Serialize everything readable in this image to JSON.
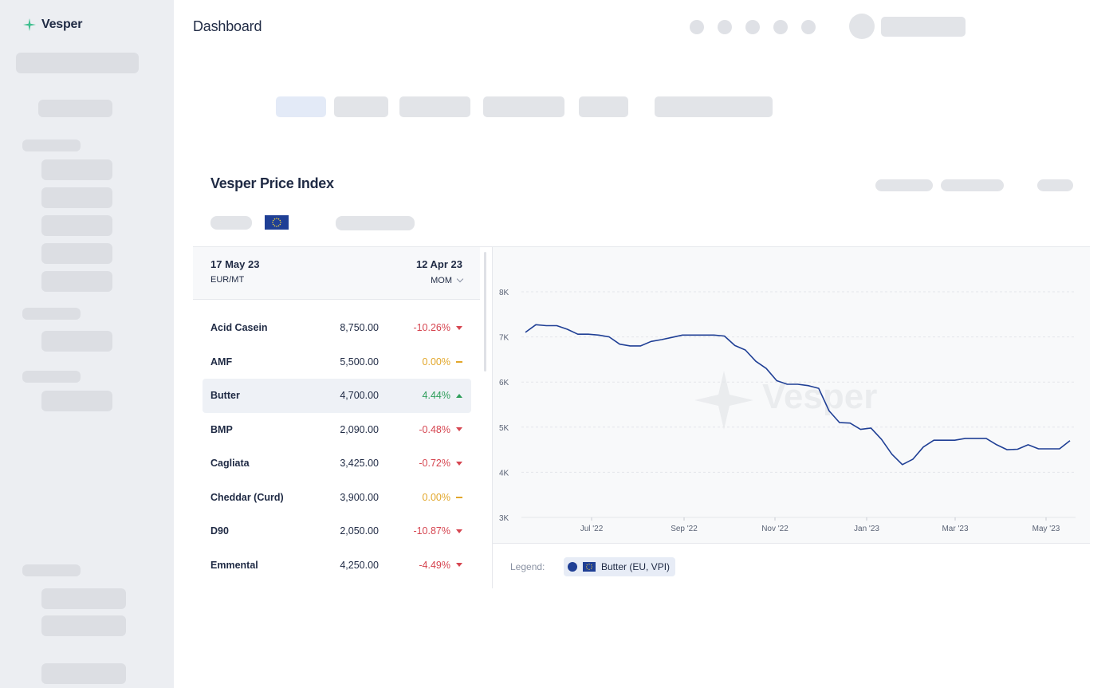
{
  "app": {
    "name": "Vesper"
  },
  "header": {
    "title": "Dashboard"
  },
  "panel": {
    "title": "Vesper Price Index"
  },
  "table": {
    "date_current": "17 May 23",
    "unit": "EUR/MT",
    "date_compare": "12 Apr 23",
    "mode": "MOM",
    "rows": [
      {
        "name": "Acid Casein",
        "value": "8,750.00",
        "change": "-10.26%",
        "trend": "down"
      },
      {
        "name": "AMF",
        "value": "5,500.00",
        "change": "0.00%",
        "trend": "flat"
      },
      {
        "name": "Butter",
        "value": "4,700.00",
        "change": "4.44%",
        "trend": "up"
      },
      {
        "name": "BMP",
        "value": "2,090.00",
        "change": "-0.48%",
        "trend": "down"
      },
      {
        "name": "Cagliata",
        "value": "3,425.00",
        "change": "-0.72%",
        "trend": "down"
      },
      {
        "name": "Cheddar (Curd)",
        "value": "3,900.00",
        "change": "0.00%",
        "trend": "flat"
      },
      {
        "name": "D90",
        "value": "2,050.00",
        "change": "-10.87%",
        "trend": "down"
      },
      {
        "name": "Emmental",
        "value": "4,250.00",
        "change": "-4.49%",
        "trend": "down"
      }
    ],
    "selected_row": "Butter"
  },
  "colors": {
    "down": "#d64550",
    "up": "#2f9e5b",
    "flat": "#e2a72b",
    "series": "#1f3f95"
  },
  "legend": {
    "label": "Legend:",
    "item": "Butter (EU, VPI)"
  },
  "watermark": "Vesper",
  "chart_data": {
    "type": "line",
    "ylim": [
      3000,
      8000
    ],
    "y_ticks": [
      {
        "value": 3000,
        "label": "3K"
      },
      {
        "value": 4000,
        "label": "4K"
      },
      {
        "value": 5000,
        "label": "5K"
      },
      {
        "value": 6000,
        "label": "6K"
      },
      {
        "value": 7000,
        "label": "7K"
      },
      {
        "value": 8000,
        "label": "8K"
      }
    ],
    "x_ticks": [
      "Jul '22",
      "Sep '22",
      "Nov '22",
      "Jan '23",
      "Mar '23",
      "May '23"
    ],
    "grid": true,
    "series": [
      {
        "name": "Butter (EU, VPI)",
        "values": [
          7100,
          7270,
          7250,
          7250,
          7170,
          7060,
          7060,
          7040,
          7000,
          6840,
          6800,
          6800,
          6900,
          6940,
          6990,
          7040,
          7040,
          7040,
          7040,
          7020,
          6810,
          6710,
          6460,
          6300,
          6030,
          5950,
          5950,
          5920,
          5860,
          5360,
          5100,
          5090,
          4950,
          4980,
          4730,
          4400,
          4170,
          4290,
          4560,
          4710,
          4710,
          4710,
          4750,
          4750,
          4750,
          4610,
          4500,
          4510,
          4610,
          4520,
          4520,
          4520,
          4700
        ]
      }
    ]
  }
}
